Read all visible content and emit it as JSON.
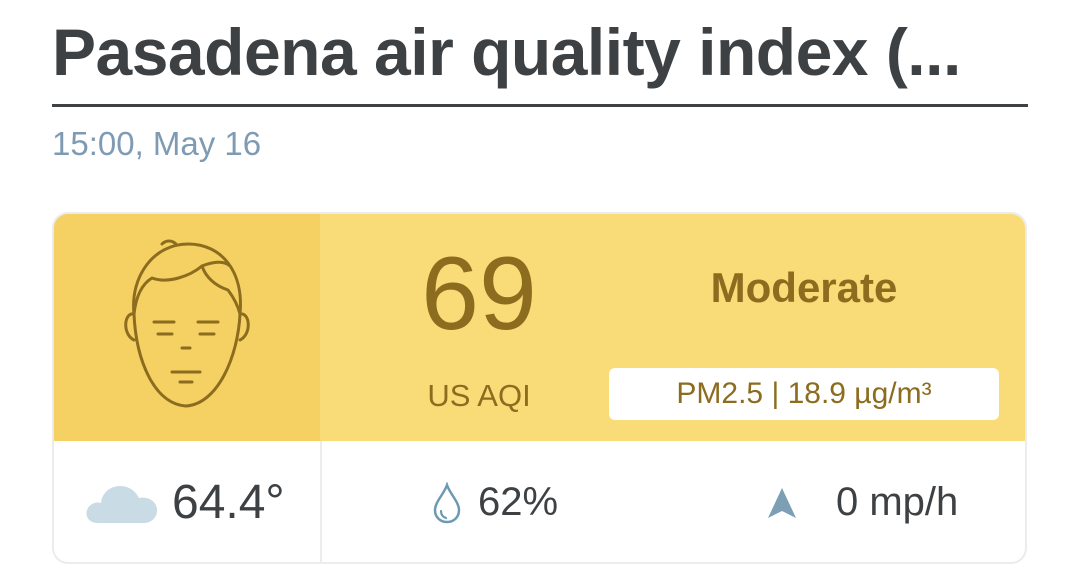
{
  "header": {
    "title": "Pasadena air quality index (...",
    "timestamp": "15:00, May 16"
  },
  "aqi": {
    "value": "69",
    "unit": "US AQI",
    "level": "Moderate",
    "pollutant": "PM2.5 | 18.9 µg/m³",
    "face_icon": "neutral-face-icon"
  },
  "weather": {
    "temperature": "64.4°",
    "temperature_icon": "cloud-icon",
    "humidity": "62%",
    "humidity_icon": "droplet-icon",
    "wind": "0 mp/h",
    "wind_icon": "wind-arrow-icon"
  },
  "colors": {
    "band": "#f9dc77",
    "face_panel": "#f5d062",
    "aqi_text": "#8c6d1f",
    "title_text": "#3d4144",
    "timestamp_text": "#7f9bb3"
  }
}
